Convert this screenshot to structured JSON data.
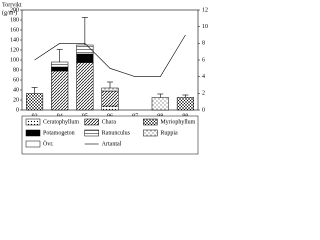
{
  "chart_data": {
    "type": "bar",
    "title": "Torrvikt",
    "y_label": "(g/m²)",
    "categories": [
      "93",
      "94",
      "95",
      "96",
      "97",
      "98",
      "99"
    ],
    "series": [
      {
        "name": "Ceratophyllum",
        "color": "#777",
        "pattern": "dots",
        "values": [
          0,
          0,
          0,
          8,
          0,
          0,
          0
        ]
      },
      {
        "name": "Chara",
        "color": "#555",
        "pattern": "diag",
        "values": [
          0,
          78,
          95,
          30,
          0,
          0,
          0
        ]
      },
      {
        "name": "Myriophyllum",
        "color": "#666",
        "pattern": "cross",
        "values": [
          33,
          0,
          0,
          0,
          0,
          0,
          25
        ]
      },
      {
        "name": "Potamogeton",
        "color": "#000",
        "pattern": "solid",
        "values": [
          0,
          8,
          17,
          0,
          0,
          0,
          0
        ]
      },
      {
        "name": "Ranunculus",
        "color": "#999",
        "pattern": "hlines",
        "values": [
          0,
          10,
          18,
          0,
          0,
          0,
          0
        ]
      },
      {
        "name": "Ruppia",
        "color": "#aaa",
        "pattern": "vdots",
        "values": [
          0,
          0,
          0,
          6,
          0,
          25,
          0
        ]
      },
      {
        "name": "Övr.",
        "color": "#fff",
        "pattern": "none",
        "values": [
          0,
          0,
          0,
          0,
          0,
          0,
          0
        ]
      },
      {
        "name": "Artantal",
        "color": "#000",
        "axis": "y2",
        "values": [
          6,
          8,
          8,
          5,
          4,
          4,
          9
        ]
      }
    ],
    "errors": [
      12,
      25,
      55,
      12,
      null,
      7,
      5
    ],
    "ylim": [
      0,
      200
    ],
    "yticks": [
      0,
      20,
      40,
      60,
      80,
      100,
      120,
      140,
      160,
      180,
      200
    ],
    "y2lim": [
      0,
      12
    ],
    "y2ticks": [
      0,
      2,
      4,
      6,
      8,
      10,
      12
    ]
  }
}
